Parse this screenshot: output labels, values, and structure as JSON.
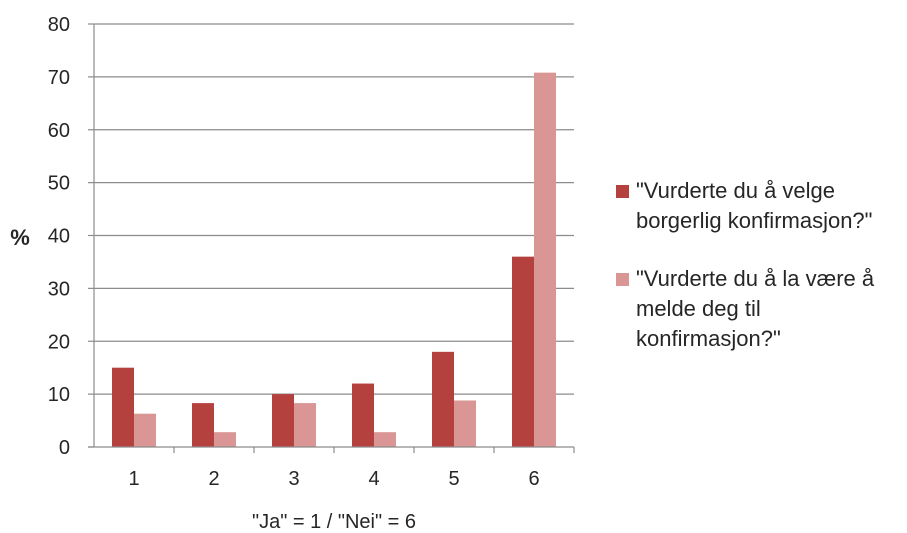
{
  "chart_data": {
    "type": "bar",
    "categories": [
      "1",
      "2",
      "3",
      "4",
      "5",
      "6"
    ],
    "series": [
      {
        "name": "\"Vurderte du å velge borgerlig konfirmasjon?\"",
        "values": [
          15,
          8.3,
          10,
          12,
          18,
          36
        ],
        "color": "#b5413f"
      },
      {
        "name": "\"Vurderte du å la være å melde deg til konfirmasjon?\"",
        "values": [
          6.3,
          2.8,
          8.3,
          2.8,
          8.8,
          70.8
        ],
        "color": "#d99694"
      }
    ],
    "xlabel": "\"Ja\" = 1 / \"Nei\" = 6",
    "ylabel": "%",
    "ylim": [
      0,
      80
    ],
    "yticks": [
      0,
      10,
      20,
      30,
      40,
      50,
      60,
      70,
      80
    ],
    "grid": true,
    "legend_position": "right"
  }
}
